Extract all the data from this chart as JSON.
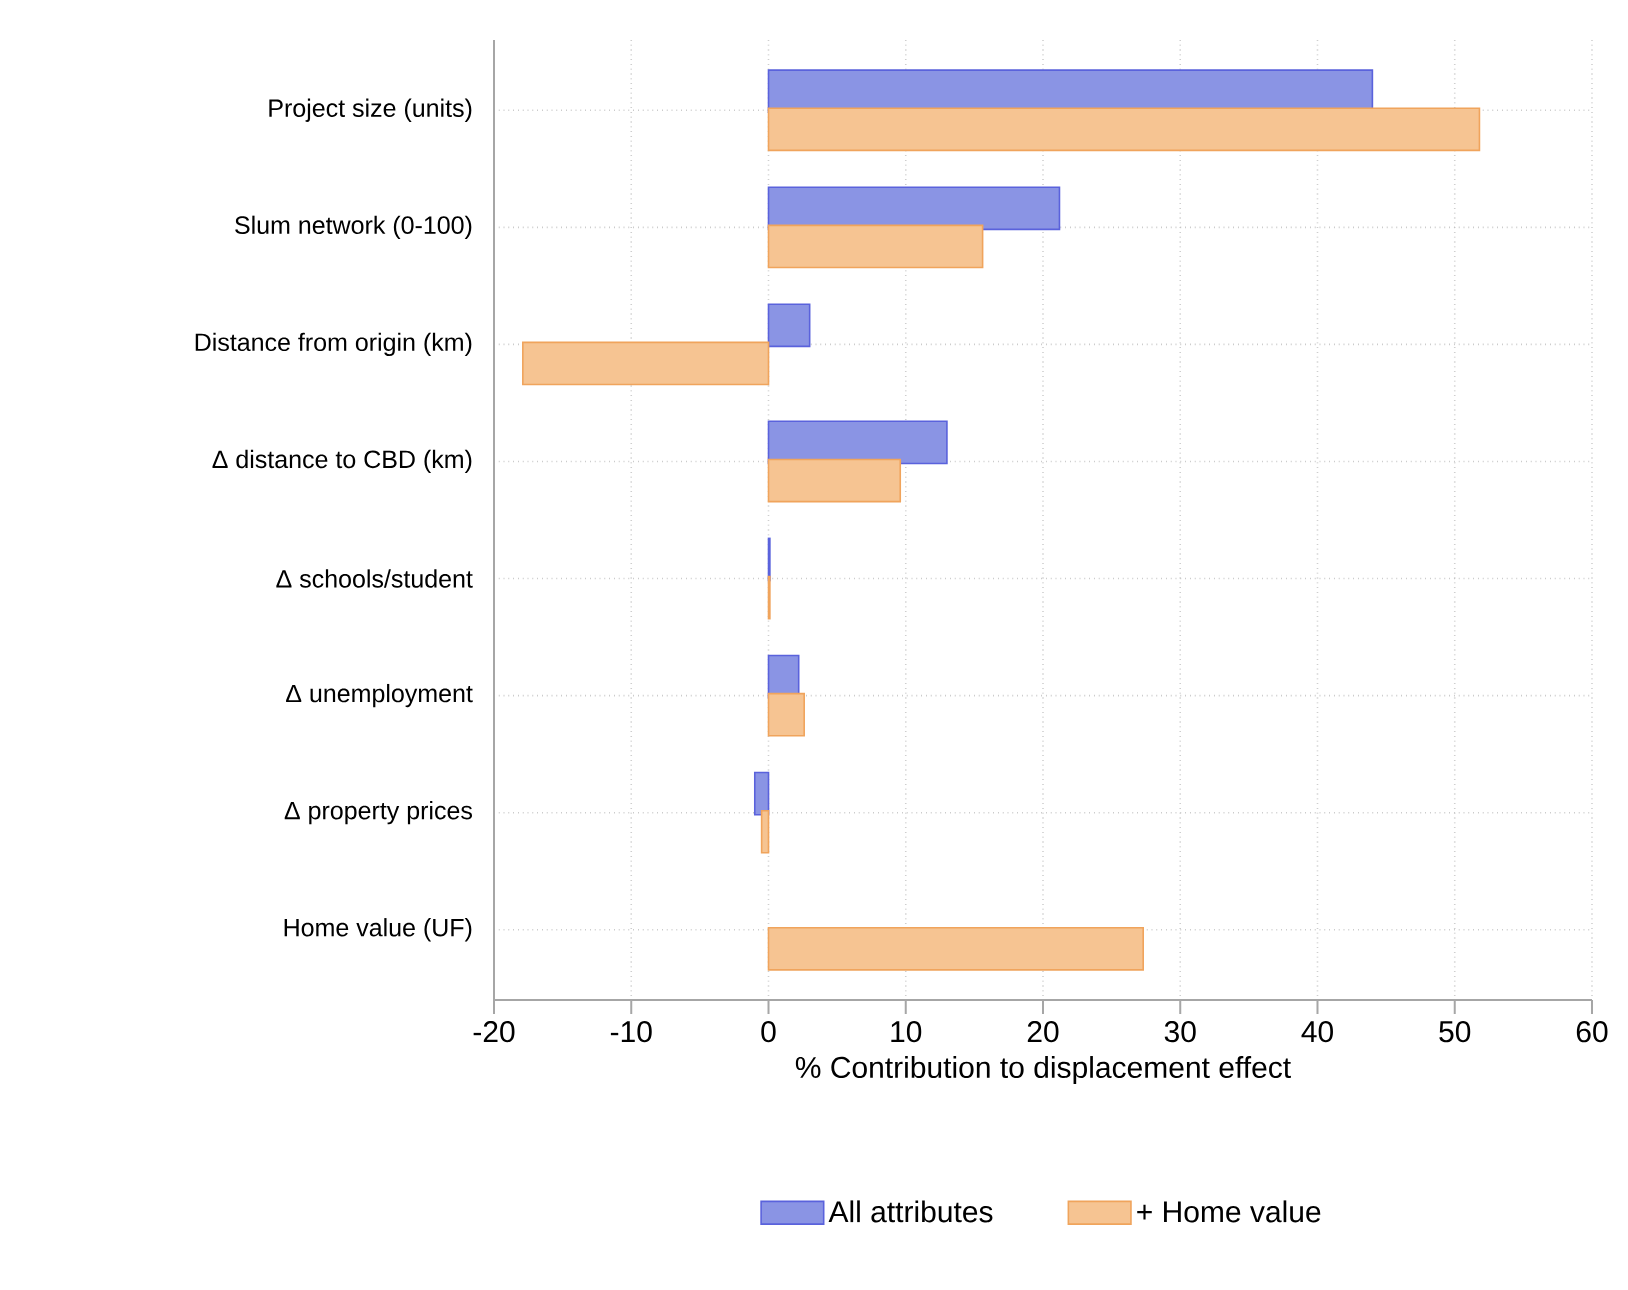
{
  "chart_data": {
    "type": "bar",
    "orientation": "horizontal",
    "xlabel": "% Contribution to displacement effect",
    "categories": [
      "Project size (units)",
      "Slum network (0-100)",
      "Distance from origin (km)",
      "Δ distance to CBD (km)",
      "Δ schools/student",
      "Δ unemployment",
      "Δ property prices",
      "Home value (UF)"
    ],
    "series": [
      {
        "name": "All attributes",
        "color": "#8a94e4",
        "values": [
          44.0,
          21.2,
          3.0,
          13.0,
          0.1,
          2.2,
          -1.0,
          null
        ]
      },
      {
        "name": "+ Home value",
        "color": "#f6c492",
        "values": [
          51.8,
          15.6,
          -17.9,
          9.6,
          0.1,
          2.6,
          -0.5,
          27.3
        ]
      }
    ],
    "xlim": [
      -20,
      60
    ],
    "xticks": [
      -20,
      -10,
      0,
      10,
      20,
      30,
      40,
      50,
      60
    ],
    "grid": true,
    "legend": "bottom"
  }
}
